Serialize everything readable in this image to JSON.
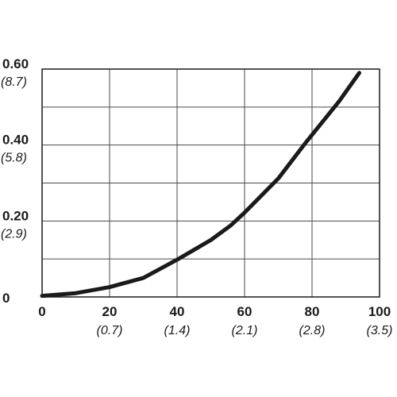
{
  "chart_data": {
    "type": "line",
    "title": "",
    "xlabel": "",
    "ylabel": "",
    "xlim": [
      0,
      100
    ],
    "ylim": [
      0,
      0.6
    ],
    "grid": true,
    "x_ticks": [
      {
        "value": 0,
        "label": "0",
        "sublabel": ""
      },
      {
        "value": 20,
        "label": "20",
        "sublabel": "(0.7)"
      },
      {
        "value": 40,
        "label": "40",
        "sublabel": "(1.4)"
      },
      {
        "value": 60,
        "label": "60",
        "sublabel": "(2.1)"
      },
      {
        "value": 80,
        "label": "80",
        "sublabel": "(2.8)"
      },
      {
        "value": 100,
        "label": "100",
        "sublabel": "(3.5)"
      }
    ],
    "y_ticks": [
      {
        "value": 0,
        "label": "0",
        "sublabel": ""
      },
      {
        "value": 0.2,
        "label": "0.20",
        "sublabel": "(2.9)"
      },
      {
        "value": 0.4,
        "label": "0.40",
        "sublabel": "(5.8)"
      },
      {
        "value": 0.6,
        "label": "0.60",
        "sublabel": "(8.7)"
      }
    ],
    "x_grid": [
      0,
      20,
      40,
      60,
      80,
      100
    ],
    "y_grid": [
      0,
      0.1,
      0.2,
      0.3,
      0.4,
      0.5,
      0.6
    ],
    "series": [
      {
        "color": "#1a1a1a",
        "x": [
          0,
          10,
          20,
          30,
          40,
          50,
          56,
          60,
          70,
          78,
          88,
          94
        ],
        "y": [
          0.003,
          0.01,
          0.026,
          0.05,
          0.098,
          0.15,
          0.189,
          0.222,
          0.312,
          0.405,
          0.515,
          0.59
        ]
      }
    ]
  }
}
